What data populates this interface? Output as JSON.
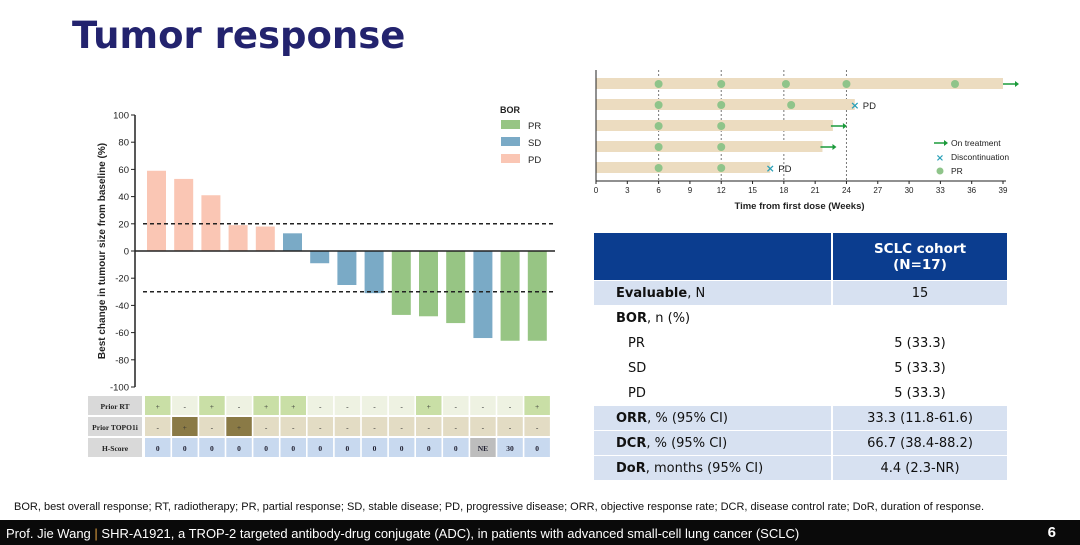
{
  "slide": {
    "title": "Tumor response",
    "footnote": "BOR, best overall response; RT, radiotherapy; PR, partial response; SD, stable disease; PD, progressive disease; ORR, objective response rate; DCR, disease control rate; DoR, duration of response.",
    "footer_presenter": "Prof. Jie Wang",
    "footer_separator": "|",
    "footer_text": "SHR-A1921, a TROP-2 targeted antibody-drug conjugate (ADC), in patients with advanced small-cell lung cancer (SCLC)",
    "page_number": "6"
  },
  "chart_data": [
    {
      "type": "bar",
      "ylabel": "Best change in tumour size from baseline (%)",
      "ylim": [
        -100,
        100
      ],
      "yticks": [
        100,
        80,
        60,
        40,
        20,
        0,
        -20,
        -40,
        -60,
        -80,
        -100
      ],
      "reference_lines": [
        20,
        -30
      ],
      "legend_title": "BOR",
      "legend_placement": "top-right",
      "legend": [
        {
          "label": "PR",
          "color": "#97c584"
        },
        {
          "label": "SD",
          "color": "#7aaac6"
        },
        {
          "label": "PD",
          "color": "#fac6b4"
        }
      ],
      "values": [
        59,
        53,
        41,
        19,
        18,
        13,
        -9,
        -25,
        -31,
        -47,
        -48,
        -53,
        -64,
        -66,
        -66
      ],
      "bor": [
        "PD",
        "PD",
        "PD",
        "PD",
        "PD",
        "SD",
        "SD",
        "SD",
        "SD",
        "PR",
        "PR",
        "PR",
        "SD",
        "PR",
        "PR"
      ],
      "annotation_rows": [
        {
          "label": "Prior RT",
          "values": [
            "+",
            "-",
            "+",
            "-",
            "+",
            "+",
            "-",
            "-",
            "-",
            "-",
            "+",
            "-",
            "-",
            "-",
            "+"
          ]
        },
        {
          "label": "Prior TOPO1i",
          "values": [
            "-",
            "+",
            "-",
            "+",
            "-",
            "-",
            "-",
            "-",
            "-",
            "-",
            "-",
            "-",
            "-",
            "-",
            "-"
          ]
        },
        {
          "label": "H-Score",
          "values": [
            "0",
            "0",
            "0",
            "0",
            "0",
            "0",
            "0",
            "0",
            "0",
            "0",
            "0",
            "0",
            "NE",
            "30",
            "0"
          ]
        }
      ]
    },
    {
      "type": "swimmer",
      "xlabel": "Time from first dose (Weeks)",
      "xlim": [
        0,
        39
      ],
      "xticks": [
        0,
        3,
        6,
        9,
        12,
        15,
        18,
        21,
        24,
        27,
        30,
        33,
        36,
        39
      ],
      "reference_lines": [
        6,
        12,
        18,
        24
      ],
      "legend_placement": "right",
      "legend": [
        {
          "label": "On treatment",
          "symbol": "arrow",
          "color": "#1a9a3a"
        },
        {
          "label": "Discontinuation",
          "symbol": "x",
          "color": "#2aa0b8"
        },
        {
          "label": "PR",
          "symbol": "circle",
          "color": "#8fc48a"
        }
      ],
      "rows": [
        {
          "duration": 39,
          "pr": [
            6,
            12,
            18.2,
            24,
            34.4
          ],
          "end": "on-treatment"
        },
        {
          "duration": 24.8,
          "pr": [
            6,
            12,
            18.7
          ],
          "end": "discontinuation",
          "end_label": "PD"
        },
        {
          "duration": 22.7,
          "pr": [
            6,
            12
          ],
          "end": "on-treatment"
        },
        {
          "duration": 21.7,
          "pr": [
            6,
            12
          ],
          "end": "on-treatment"
        },
        {
          "duration": 16.7,
          "pr": [
            6,
            12
          ],
          "end": "discontinuation",
          "end_label": "PD"
        }
      ]
    }
  ],
  "table": {
    "header": [
      "SCLC cohort",
      "(N=17)"
    ],
    "rows": [
      {
        "bold": "Evaluable",
        "rest": ", N",
        "value": "15",
        "shade": true,
        "sub": false
      },
      {
        "bold": "BOR",
        "rest": ", n (%)",
        "value": "",
        "shade": false,
        "sub": false
      },
      {
        "bold": "",
        "rest": "PR",
        "value": "5 (33.3)",
        "shade": false,
        "sub": true
      },
      {
        "bold": "",
        "rest": "SD",
        "value": "5 (33.3)",
        "shade": false,
        "sub": true
      },
      {
        "bold": "",
        "rest": "PD",
        "value": "5 (33.3)",
        "shade": false,
        "sub": true
      },
      {
        "bold": "ORR",
        "rest": ", % (95% CI)",
        "value": "33.3 (11.8-61.6)",
        "shade": true,
        "sub": false
      },
      {
        "bold": "DCR",
        "rest": ", % (95% CI)",
        "value": "66.7 (38.4-88.2)",
        "shade": true,
        "sub": false
      },
      {
        "bold": "DoR",
        "rest": ", months (95% CI)",
        "value": "4.4 (2.3-NR)",
        "shade": true,
        "sub": false
      }
    ]
  }
}
